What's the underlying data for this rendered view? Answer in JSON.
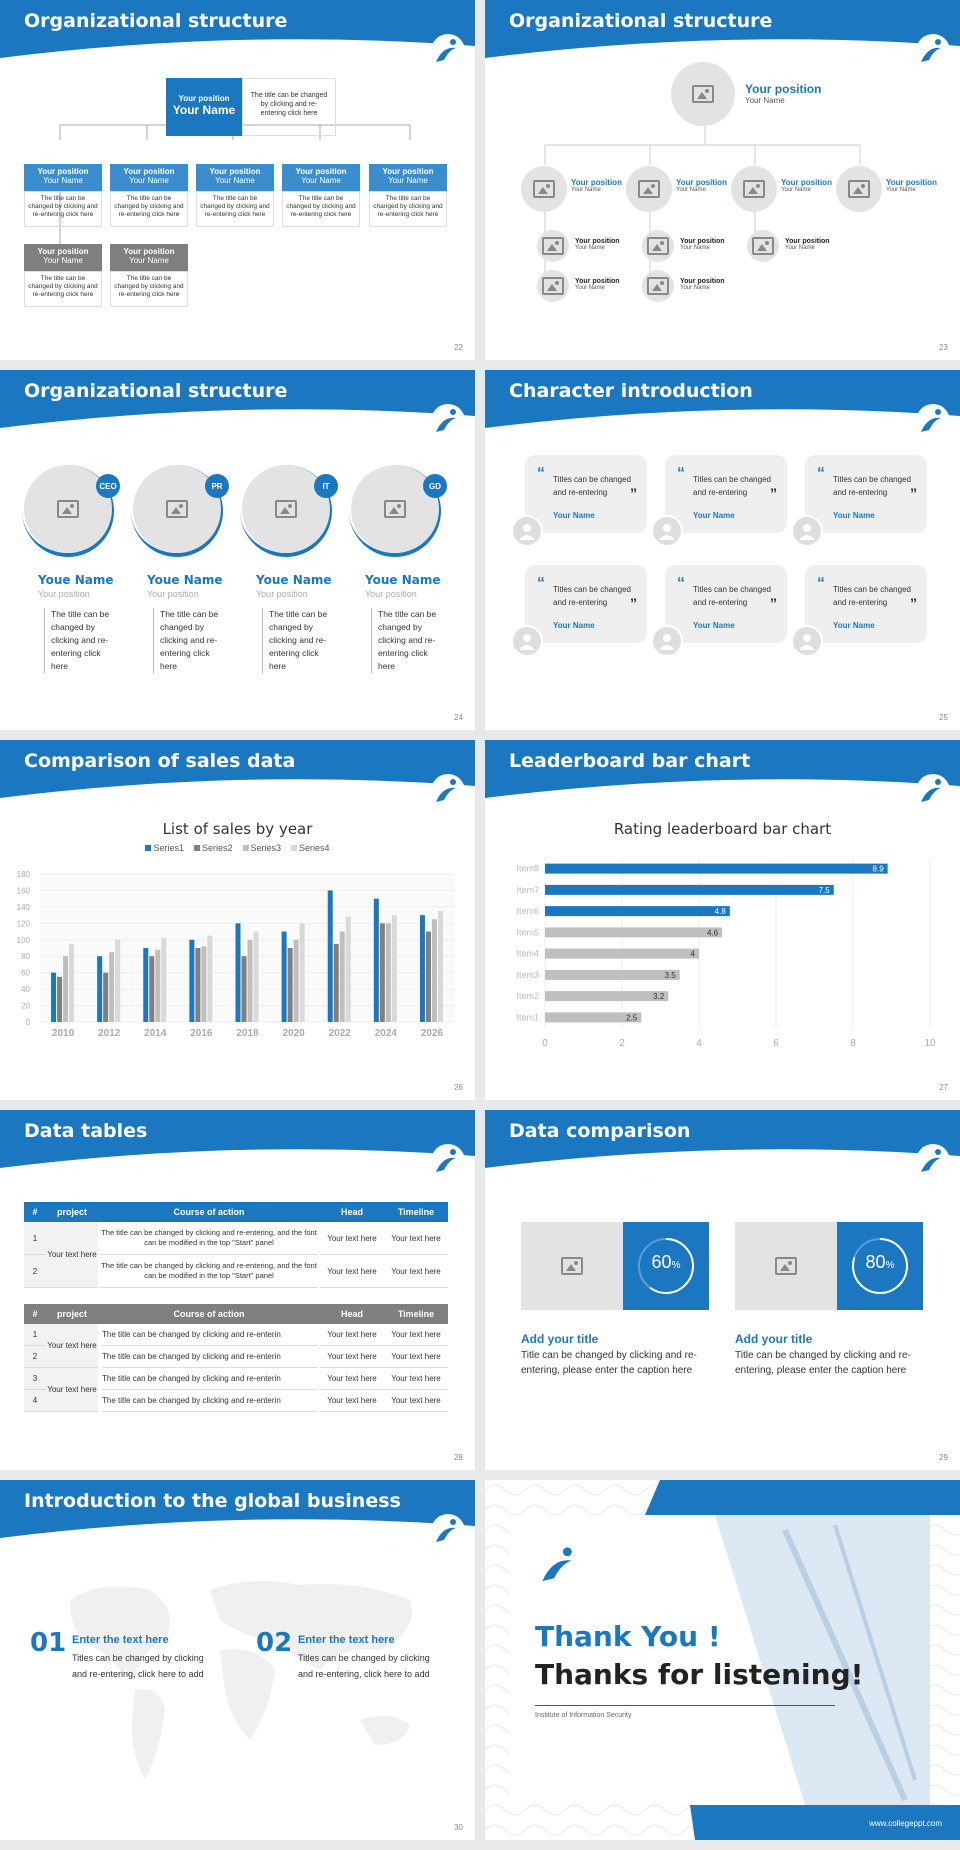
{
  "colors": {
    "accent": "#1b77bf",
    "gray": "#7f7f7f",
    "light": "#e3e3e3"
  },
  "s22": {
    "title": "Organizational structure",
    "page": "22",
    "top": {
      "pos": "Your position",
      "name": "Your Name",
      "desc": "The title can be changed by clicking and re-entering click here"
    },
    "row1": [
      {
        "pos": "Your position",
        "name": "Your Name",
        "desc": "The title can be changed by clicking and re-entering click here"
      },
      {
        "pos": "Your position",
        "name": "Your Name",
        "desc": "The title can be changed by clicking and re-entering click here"
      },
      {
        "pos": "Your position",
        "name": "Your Name",
        "desc": "The title can be changed by clicking and re-entering click here"
      },
      {
        "pos": "Your position",
        "name": "Your Name",
        "desc": "The title can be changed by clicking and re-entering click here"
      },
      {
        "pos": "Your position",
        "name": "Your Name",
        "desc": "The title can be changed by clicking and re-entering click here"
      }
    ],
    "row2": [
      {
        "pos": "Your position",
        "name": "Your Name",
        "desc": "The title can be changed by clicking and re-entering click here"
      },
      {
        "pos": "Your position",
        "name": "Your Name",
        "desc": "The title can be changed by clicking and re-entering click here"
      }
    ]
  },
  "s23": {
    "title": "Organizational structure",
    "page": "23",
    "top": {
      "pos": "Your position",
      "name": "Your Name"
    },
    "mid": [
      {
        "pos": "Your position",
        "name": "Your Name"
      },
      {
        "pos": "Your position",
        "name": "Your Name"
      },
      {
        "pos": "Your position",
        "name": "Your Name"
      },
      {
        "pos": "Your position",
        "name": "Your Name"
      }
    ],
    "sub": [
      {
        "pos": "Your position",
        "name": "Your Name"
      },
      {
        "pos": "Your position",
        "name": "Your Name"
      },
      {
        "pos": "Your position",
        "name": "Your Name"
      },
      {
        "pos": "Your position",
        "name": "Your Name"
      },
      {
        "pos": "Your position",
        "name": "Your Name"
      },
      {
        "pos": "Your position",
        "name": "Your Name"
      }
    ]
  },
  "s24": {
    "title": "Organizational structure",
    "page": "24",
    "people": [
      {
        "badge": "CEO",
        "name": "Youe Name",
        "pos": "Your position",
        "desc": "The title can be changed by clicking and re-entering click here"
      },
      {
        "badge": "PR",
        "name": "Youe Name",
        "pos": "Your position",
        "desc": "The title can be changed by clicking and re-entering click here"
      },
      {
        "badge": "IT",
        "name": "Youe Name",
        "pos": "Your position",
        "desc": "The title can be changed by clicking and re-entering click here"
      },
      {
        "badge": "GD",
        "name": "Youe Name",
        "pos": "Your position",
        "desc": "The title can be changed by clicking and re-entering click here"
      }
    ]
  },
  "s25": {
    "title": "Character introduction",
    "page": "25",
    "cards": [
      {
        "text": "Titles can be changed and re-entering",
        "name": "Your Name"
      },
      {
        "text": "Titles can be changed and re-entering",
        "name": "Your Name"
      },
      {
        "text": "Titles can be changed and re-entering",
        "name": "Your Name"
      },
      {
        "text": "Titles can be changed and re-entering",
        "name": "Your Name"
      },
      {
        "text": "Titles can be changed and re-entering",
        "name": "Your Name"
      },
      {
        "text": "Titles can be changed and re-entering",
        "name": "Your Name"
      }
    ]
  },
  "s26": {
    "title": "Comparison of sales data",
    "page": "26"
  },
  "s27": {
    "title": "Leaderboard bar chart",
    "page": "27"
  },
  "chart_data": [
    {
      "type": "bar",
      "title": "List of sales by year",
      "categories": [
        "2010",
        "2012",
        "2014",
        "2016",
        "2018",
        "2020",
        "2022",
        "2024",
        "2026"
      ],
      "series": [
        {
          "name": "Series1",
          "color": "#1b77bf",
          "values": [
            60,
            80,
            90,
            100,
            120,
            110,
            160,
            150,
            130
          ]
        },
        {
          "name": "Series2",
          "color": "#7f7f7f",
          "values": [
            55,
            60,
            80,
            90,
            80,
            90,
            95,
            120,
            110
          ]
        },
        {
          "name": "Series3",
          "color": "#bfbfbf",
          "values": [
            80,
            85,
            88,
            92,
            100,
            100,
            110,
            120,
            125
          ]
        },
        {
          "name": "Series4",
          "color": "#d9d9d9",
          "values": [
            95,
            100,
            102,
            105,
            110,
            120,
            128,
            130,
            135
          ]
        }
      ],
      "ylim": [
        0,
        180
      ],
      "yticks": [
        0,
        20,
        40,
        60,
        80,
        100,
        120,
        140,
        160,
        180
      ],
      "legend": "top",
      "grid": true
    },
    {
      "type": "bar",
      "orientation": "horizontal",
      "title": "Rating leaderboard bar chart",
      "categories": [
        "Item8",
        "Item7",
        "Item6",
        "Item5",
        "Item4",
        "Item3",
        "Item2",
        "Item1"
      ],
      "values": [
        8.9,
        7.5,
        4.8,
        4.6,
        4,
        3.5,
        3.2,
        2.5
      ],
      "value_labels": [
        "8.9",
        "7.5",
        "4.8",
        "4.6",
        "4",
        "3.5",
        "3.2",
        "2.5"
      ],
      "xlim": [
        0,
        10
      ],
      "xticks": [
        "0",
        "2",
        "4",
        "6",
        "8",
        "10"
      ],
      "colors": [
        "#1b77bf",
        "#1b77bf",
        "#1b77bf",
        "#bfbfbf",
        "#bfbfbf",
        "#bfbfbf",
        "#bfbfbf",
        "#bfbfbf"
      ]
    }
  ],
  "s28": {
    "title": "Data tables",
    "page": "28",
    "t1": {
      "headers": [
        "#",
        "project",
        "Course of action",
        "Head",
        "Timeline"
      ],
      "project": "Your text here",
      "rows": [
        {
          "n": "1",
          "action": "The title can be changed by clicking and re-entering, and the font can be modified in the top \"Start\" panel",
          "head": "Your text here",
          "time": "Your text here"
        },
        {
          "n": "2",
          "action": "The title can be changed by clicking and re-entering, and the font can be modified in the top \"Start\" panel",
          "head": "Your text here",
          "time": "Your text here"
        }
      ]
    },
    "t2": {
      "headers": [
        "#",
        "project",
        "Course of action",
        "Head",
        "Timeline"
      ],
      "projects": [
        "Your text here",
        "Your text here"
      ],
      "rows": [
        {
          "n": "1",
          "action": "The title can be changed by clicking and re-enterin",
          "head": "Your text here",
          "time": "Your text here"
        },
        {
          "n": "2",
          "action": "The title can be changed by clicking and re-enterin",
          "head": "Your text here",
          "time": "Your text here"
        },
        {
          "n": "3",
          "action": "The title can be changed by clicking and re-enterin",
          "head": "Your text here",
          "time": "Your text here"
        },
        {
          "n": "4",
          "action": "The title can be changed by clicking and re-enterin",
          "head": "Your text here",
          "time": "Your text here"
        }
      ]
    }
  },
  "s29": {
    "title": "Data comparison",
    "page": "29",
    "items": [
      {
        "value": 60,
        "label": "60",
        "unit": "%",
        "title": "Add your title",
        "text": "Title can be changed by clicking and re-entering, please enter the caption here"
      },
      {
        "value": 80,
        "label": "80",
        "unit": "%",
        "title": "Add your title",
        "text": "Title can be changed by clicking and re-entering, please enter the caption here"
      }
    ]
  },
  "s30": {
    "title": "Introduction to the global business",
    "page": "30",
    "items": [
      {
        "num": "01",
        "head": "Enter the text here",
        "text": "Titles can be changed by clicking and re-entering, click here to add"
      },
      {
        "num": "02",
        "head": "Enter the text here",
        "text": "Titles can be changed by clicking and re-entering, click here to add"
      }
    ]
  },
  "s31": {
    "thanks": "Thank You !",
    "listening": "Thanks for listening!",
    "institute": "Institute of Information Security",
    "url": "www.collegeppt.com"
  }
}
